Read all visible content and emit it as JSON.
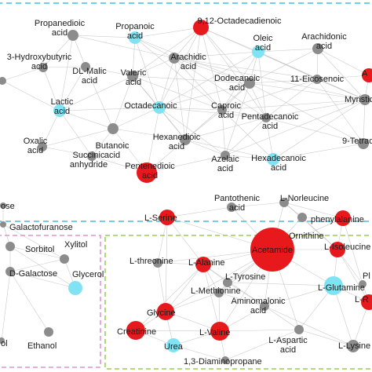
{
  "panels": [
    {
      "id": "acids",
      "border_color": "#5bc8e8"
    },
    {
      "id": "sugars",
      "border_color": "#e8a0d8"
    },
    {
      "id": "amino",
      "border_color": "#a8d46a"
    }
  ],
  "node_colors": {
    "gray": "#8c8c8c",
    "cyan": "#7fe3f3",
    "red": "#e8191c"
  },
  "nodes": [
    {
      "id": "propanedioic",
      "lines": [
        "Propanedioic",
        "acid"
      ],
      "color": "gray"
    },
    {
      "id": "propanoic",
      "lines": [
        "Propanoic",
        "acid"
      ],
      "color": "cyan"
    },
    {
      "id": "octadecadienoic",
      "lines": [
        "9,12-Octadecadienoic"
      ],
      "color": "red"
    },
    {
      "id": "oleic",
      "lines": [
        "Oleic",
        "acid"
      ],
      "color": "cyan"
    },
    {
      "id": "arachidonic",
      "lines": [
        "Arachidonic",
        "acid"
      ],
      "color": "gray"
    },
    {
      "id": "partial-a",
      "lines": [
        "A"
      ],
      "color": "red"
    },
    {
      "id": "hydroxybutyric",
      "lines": [
        "3-Hydroxybutyric",
        "acid"
      ],
      "color": "gray"
    },
    {
      "id": "dl-malic",
      "lines": [
        "DL-Malic",
        "acid"
      ],
      "color": "gray"
    },
    {
      "id": "partial-left",
      "lines": [],
      "color": "gray"
    },
    {
      "id": "arachidic",
      "lines": [
        "Arachidic",
        "acid"
      ],
      "color": "gray"
    },
    {
      "id": "valeric",
      "lines": [
        "Valeric",
        "acid"
      ],
      "color": "gray"
    },
    {
      "id": "dodecanoic",
      "lines": [
        "Dodecanoic",
        "acid"
      ],
      "color": "gray"
    },
    {
      "id": "eicosenoic",
      "lines": [
        "11-Eicosenoic"
      ],
      "color": "gray"
    },
    {
      "id": "myristic",
      "lines": [
        "Myristic"
      ],
      "color": "gray"
    },
    {
      "id": "lactic",
      "lines": [
        "Lactic",
        "acid"
      ],
      "color": "cyan"
    },
    {
      "id": "octadecanoic",
      "lines": [
        "Octadecanoic"
      ],
      "color": "cyan"
    },
    {
      "id": "caproic",
      "lines": [
        "Caproic",
        "acid"
      ],
      "color": "gray"
    },
    {
      "id": "pentadecanoic",
      "lines": [
        "Pentadecanoic",
        "acid"
      ],
      "color": "gray"
    },
    {
      "id": "butanoic",
      "lines": [
        "Butanoic",
        "acid"
      ],
      "color": "gray"
    },
    {
      "id": "hexanedioic",
      "lines": [
        "Hexanedioic",
        "acid"
      ],
      "color": "gray"
    },
    {
      "id": "tetradec",
      "lines": [
        "9-Tetradec"
      ],
      "color": "gray"
    },
    {
      "id": "oxalic",
      "lines": [
        "Oxalic",
        "acid"
      ],
      "color": "gray"
    },
    {
      "id": "succinic",
      "lines": [
        "Succinic",
        "anhydride"
      ],
      "color": "gray"
    },
    {
      "id": "azelaic",
      "lines": [
        "Azelaic",
        "acid"
      ],
      "color": "gray"
    },
    {
      "id": "hexadecanoic",
      "lines": [
        "Hexadecanoic",
        "acid"
      ],
      "color": "cyan"
    },
    {
      "id": "pentenedioic",
      "lines": [
        "Pentenedioic",
        "acid"
      ],
      "color": "red"
    },
    {
      "id": "ose",
      "lines": [
        "ose"
      ],
      "color": "gray"
    },
    {
      "id": "galactofuranose",
      "lines": [
        "Galactofuranose"
      ],
      "color": "gray"
    },
    {
      "id": "sorbitol",
      "lines": [
        "Sorbitol"
      ],
      "color": "gray"
    },
    {
      "id": "xylitol",
      "lines": [
        "Xylitol"
      ],
      "color": "gray"
    },
    {
      "id": "d-galactose",
      "lines": [
        "D-Galactose"
      ],
      "color": "gray"
    },
    {
      "id": "glycerol",
      "lines": [
        "Glycerol"
      ],
      "color": "cyan"
    },
    {
      "id": "ol",
      "lines": [
        "ol"
      ],
      "color": "gray"
    },
    {
      "id": "ethanol",
      "lines": [
        "Ethanol"
      ],
      "color": "gray"
    },
    {
      "id": "l-serine",
      "lines": [
        "L-Serine"
      ],
      "color": "red"
    },
    {
      "id": "pantothenic",
      "lines": [
        "Pantothenic",
        "acid"
      ],
      "color": "gray"
    },
    {
      "id": "l-norleucine",
      "lines": [
        "L-Norleucine"
      ],
      "color": "gray"
    },
    {
      "id": "phenylalanine",
      "lines": [
        "phenylalanine"
      ],
      "color": "red"
    },
    {
      "id": "ornithine",
      "lines": [
        "Ornithine"
      ],
      "color": "gray"
    },
    {
      "id": "acetamide",
      "lines": [
        "Acetamide"
      ],
      "color": "red"
    },
    {
      "id": "l-isoleucine",
      "lines": [
        "L-Isoleucine"
      ],
      "color": "red"
    },
    {
      "id": "partial-pl",
      "lines": [
        "Pl"
      ],
      "color": "gray"
    },
    {
      "id": "l-threonine",
      "lines": [
        "L-threonine"
      ],
      "color": "gray"
    },
    {
      "id": "l-alanine",
      "lines": [
        "L-Alanine"
      ],
      "color": "red"
    },
    {
      "id": "l-tyrosine",
      "lines": [
        "L-Tyrosine"
      ],
      "color": "gray"
    },
    {
      "id": "l-glutamine",
      "lines": [
        "L-Glutamine"
      ],
      "color": "cyan"
    },
    {
      "id": "partial-lr",
      "lines": [
        "L-R"
      ],
      "color": "red"
    },
    {
      "id": "l-methionine",
      "lines": [
        "L-Methionine"
      ],
      "color": "gray"
    },
    {
      "id": "aminomalonic",
      "lines": [
        "Aminomalonic",
        "acid"
      ],
      "color": "gray"
    },
    {
      "id": "glycine",
      "lines": [
        "Glycine"
      ],
      "color": "red"
    },
    {
      "id": "creatinine",
      "lines": [
        "Creatinine"
      ],
      "color": "red"
    },
    {
      "id": "l-valine",
      "lines": [
        "L-Valine"
      ],
      "color": "red"
    },
    {
      "id": "urea",
      "lines": [
        "Urea"
      ],
      "color": "cyan"
    },
    {
      "id": "l-aspartic",
      "lines": [
        "L-Aspartic",
        "acid"
      ],
      "color": "gray"
    },
    {
      "id": "l-lysine",
      "lines": [
        "L-Lysine"
      ],
      "color": "gray"
    },
    {
      "id": "diaminopropane",
      "lines": [
        "1,3-Diaminopropane"
      ],
      "color": "gray"
    }
  ],
  "edges": [
    [
      "propanedioic",
      "propanoic"
    ],
    [
      "propanedioic",
      "hydroxybutyric"
    ],
    [
      "propanedioic",
      "dl-malic"
    ],
    [
      "propanedioic",
      "lactic"
    ],
    [
      "propanedioic",
      "arachidic"
    ],
    [
      "propanoic",
      "octadecadienoic"
    ],
    [
      "propanoic",
      "arachidic"
    ],
    [
      "propanoic",
      "valeric"
    ],
    [
      "propanoic",
      "dodecanoic"
    ],
    [
      "propanoic",
      "octadecanoic"
    ],
    [
      "propanoic",
      "caproic"
    ],
    [
      "octadecadienoic",
      "oleic"
    ],
    [
      "octadecadienoic",
      "arachidic"
    ],
    [
      "octadecadienoic",
      "dodecanoic"
    ],
    [
      "octadecadienoic",
      "caproic"
    ],
    [
      "octadecadienoic",
      "pentadecanoic"
    ],
    [
      "octadecadienoic",
      "hexanedioic"
    ],
    [
      "octadecadienoic",
      "myristic"
    ],
    [
      "octadecadienoic",
      "octadecanoic"
    ],
    [
      "octadecadienoic",
      "valeric"
    ],
    [
      "oleic",
      "arachidonic"
    ],
    [
      "oleic",
      "dodecanoic"
    ],
    [
      "oleic",
      "eicosenoic"
    ],
    [
      "oleic",
      "myristic"
    ],
    [
      "oleic",
      "caproic"
    ],
    [
      "oleic",
      "pentadecanoic"
    ],
    [
      "oleic",
      "arachidic"
    ],
    [
      "oleic",
      "octadecanoic"
    ],
    [
      "arachidonic",
      "partial-a"
    ],
    [
      "arachidonic",
      "eicosenoic"
    ],
    [
      "arachidonic",
      "myristic"
    ],
    [
      "arachidonic",
      "dodecanoic"
    ],
    [
      "partial-a",
      "myristic"
    ],
    [
      "partial-a",
      "eicosenoic"
    ],
    [
      "hydroxybutyric",
      "dl-malic"
    ],
    [
      "hydroxybutyric",
      "lactic"
    ],
    [
      "hydroxybutyric",
      "partial-left"
    ],
    [
      "dl-malic",
      "lactic"
    ],
    [
      "dl-malic",
      "valeric"
    ],
    [
      "dl-malic",
      "butanoic"
    ],
    [
      "arachidic",
      "valeric"
    ],
    [
      "arachidic",
      "dodecanoic"
    ],
    [
      "arachidic",
      "octadecanoic"
    ],
    [
      "arachidic",
      "caproic"
    ],
    [
      "arachidic",
      "pentadecanoic"
    ],
    [
      "arachidic",
      "hexanedioic"
    ],
    [
      "arachidic",
      "eicosenoic"
    ],
    [
      "arachidic",
      "myristic"
    ],
    [
      "valeric",
      "octadecanoic"
    ],
    [
      "valeric",
      "butanoic"
    ],
    [
      "valeric",
      "caproic"
    ],
    [
      "valeric",
      "dodecanoic"
    ],
    [
      "valeric",
      "hexanedioic"
    ],
    [
      "valeric",
      "lactic"
    ],
    [
      "dodecanoic",
      "eicosenoic"
    ],
    [
      "dodecanoic",
      "caproic"
    ],
    [
      "dodecanoic",
      "pentadecanoic"
    ],
    [
      "dodecanoic",
      "octadecanoic"
    ],
    [
      "dodecanoic",
      "hexanedioic"
    ],
    [
      "dodecanoic",
      "azelaic"
    ],
    [
      "dodecanoic",
      "myristic"
    ],
    [
      "dodecanoic",
      "tetradec"
    ],
    [
      "eicosenoic",
      "myristic"
    ],
    [
      "eicosenoic",
      "pentadecanoic"
    ],
    [
      "eicosenoic",
      "tetradec"
    ],
    [
      "eicosenoic",
      "caproic"
    ],
    [
      "myristic",
      "tetradec"
    ],
    [
      "myristic",
      "pentadecanoic"
    ],
    [
      "myristic",
      "hexadecanoic"
    ],
    [
      "myristic",
      "caproic"
    ],
    [
      "myristic",
      "azelaic"
    ],
    [
      "lactic",
      "butanoic"
    ],
    [
      "lactic",
      "octadecanoic"
    ],
    [
      "lactic",
      "oxalic"
    ],
    [
      "lactic",
      "partial-left"
    ],
    [
      "lactic",
      "succinic"
    ],
    [
      "octadecanoic",
      "caproic"
    ],
    [
      "octadecanoic",
      "hexanedioic"
    ],
    [
      "octadecanoic",
      "butanoic"
    ],
    [
      "octadecanoic",
      "pentenedioic"
    ],
    [
      "octadecanoic",
      "azelaic"
    ],
    [
      "octadecanoic",
      "pentadecanoic"
    ],
    [
      "caproic",
      "pentadecanoic"
    ],
    [
      "caproic",
      "hexanedioic"
    ],
    [
      "caproic",
      "azelaic"
    ],
    [
      "caproic",
      "hexadecanoic"
    ],
    [
      "pentadecanoic",
      "hexadecanoic"
    ],
    [
      "pentadecanoic",
      "azelaic"
    ],
    [
      "pentadecanoic",
      "tetradec"
    ],
    [
      "pentadecanoic",
      "hexanedioic"
    ],
    [
      "butanoic",
      "succinic"
    ],
    [
      "butanoic",
      "oxalic"
    ],
    [
      "butanoic",
      "pentenedioic"
    ],
    [
      "butanoic",
      "hexanedioic"
    ],
    [
      "hexanedioic",
      "pentenedioic"
    ],
    [
      "hexanedioic",
      "azelaic"
    ],
    [
      "hexanedioic",
      "hexadecanoic"
    ],
    [
      "tetradec",
      "hexadecanoic"
    ],
    [
      "azelaic",
      "hexadecanoic"
    ],
    [
      "azelaic",
      "pentenedioic"
    ],
    [
      "oxalic",
      "succinic"
    ],
    [
      "succinic",
      "pentenedioic"
    ],
    [
      "ose",
      "galactofuranose"
    ],
    [
      "galactofuranose",
      "sorbitol"
    ],
    [
      "galactofuranose",
      "xylitol"
    ],
    [
      "sorbitol",
      "xylitol"
    ],
    [
      "sorbitol",
      "d-galactose"
    ],
    [
      "sorbitol",
      "glycerol"
    ],
    [
      "xylitol",
      "glycerol"
    ],
    [
      "xylitol",
      "d-galactose"
    ],
    [
      "d-galactose",
      "glycerol"
    ],
    [
      "d-galactose",
      "ol"
    ],
    [
      "d-galactose",
      "ethanol"
    ],
    [
      "l-serine",
      "pantothenic"
    ],
    [
      "l-serine",
      "acetamide"
    ],
    [
      "l-serine",
      "l-alanine"
    ],
    [
      "l-serine",
      "l-threonine"
    ],
    [
      "l-serine",
      "glycine"
    ],
    [
      "pantothenic",
      "acetamide"
    ],
    [
      "pantothenic",
      "l-norleucine"
    ],
    [
      "l-norleucine",
      "phenylalanine"
    ],
    [
      "l-norleucine",
      "ornithine"
    ],
    [
      "l-norleucine",
      "acetamide"
    ],
    [
      "l-norleucine",
      "l-isoleucine"
    ],
    [
      "phenylalanine",
      "ornithine"
    ],
    [
      "phenylalanine",
      "l-isoleucine"
    ],
    [
      "phenylalanine",
      "acetamide"
    ],
    [
      "phenylalanine",
      "partial-pl"
    ],
    [
      "ornithine",
      "acetamide"
    ],
    [
      "ornithine",
      "l-isoleucine"
    ],
    [
      "acetamide",
      "l-alanine"
    ],
    [
      "acetamide",
      "l-tyrosine"
    ],
    [
      "acetamide",
      "l-isoleucine"
    ],
    [
      "acetamide",
      "l-glutamine"
    ],
    [
      "acetamide",
      "l-methionine"
    ],
    [
      "acetamide",
      "aminomalonic"
    ],
    [
      "acetamide",
      "glycine"
    ],
    [
      "acetamide",
      "l-valine"
    ],
    [
      "acetamide",
      "l-threonine"
    ],
    [
      "acetamide",
      "l-aspartic"
    ],
    [
      "l-isoleucine",
      "partial-pl"
    ],
    [
      "l-isoleucine",
      "l-glutamine"
    ],
    [
      "l-isoleucine",
      "partial-lr"
    ],
    [
      "l-threonine",
      "l-alanine"
    ],
    [
      "l-threonine",
      "glycine"
    ],
    [
      "l-alanine",
      "l-tyrosine"
    ],
    [
      "l-alanine",
      "l-methionine"
    ],
    [
      "l-alanine",
      "glycine"
    ],
    [
      "l-alanine",
      "creatinine"
    ],
    [
      "l-alanine",
      "l-valine"
    ],
    [
      "l-alanine",
      "aminomalonic"
    ],
    [
      "l-tyrosine",
      "l-methionine"
    ],
    [
      "l-tyrosine",
      "l-glutamine"
    ],
    [
      "l-tyrosine",
      "aminomalonic"
    ],
    [
      "l-glutamine",
      "partial-lr"
    ],
    [
      "l-glutamine",
      "l-lysine"
    ],
    [
      "l-glutamine",
      "l-aspartic"
    ],
    [
      "l-glutamine",
      "aminomalonic"
    ],
    [
      "partial-lr",
      "l-lysine"
    ],
    [
      "partial-pl",
      "partial-lr"
    ],
    [
      "l-methionine",
      "aminomalonic"
    ],
    [
      "l-methionine",
      "glycine"
    ],
    [
      "l-methionine",
      "l-valine"
    ],
    [
      "aminomalonic",
      "l-valine"
    ],
    [
      "aminomalonic",
      "l-aspartic"
    ],
    [
      "aminomalonic",
      "l-lysine"
    ],
    [
      "glycine",
      "creatinine"
    ],
    [
      "glycine",
      "l-valine"
    ],
    [
      "glycine",
      "urea"
    ],
    [
      "creatinine",
      "l-valine"
    ],
    [
      "creatinine",
      "urea"
    ],
    [
      "l-valine",
      "urea"
    ],
    [
      "l-valine",
      "diaminopropane"
    ],
    [
      "l-valine",
      "l-aspartic"
    ],
    [
      "l-aspartic",
      "l-lysine"
    ],
    [
      "l-aspartic",
      "diaminopropane"
    ],
    [
      "urea",
      "diaminopropane"
    ]
  ]
}
